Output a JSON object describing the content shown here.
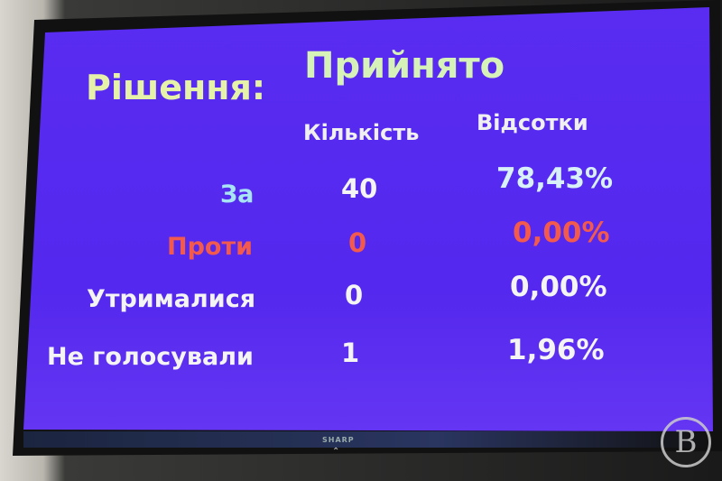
{
  "slide": {
    "decision_label": "Рішення:",
    "decision_value": "Прийнято",
    "columns": [
      "Кількість",
      "Відсотки"
    ],
    "rows": [
      {
        "label": "За",
        "count": "40",
        "percent": "78,43%",
        "color": "#a8e4f4"
      },
      {
        "label": "Проти",
        "count": "0",
        "percent": "0,00%",
        "color": "#f25a4e"
      },
      {
        "label": "Утрималися",
        "count": "0",
        "percent": "0,00%",
        "color": "#f4f4f4"
      },
      {
        "label": "Не голосували",
        "count": "1",
        "percent": "1,96%",
        "color": "#f4f4f4"
      }
    ]
  },
  "tv": {
    "brand": "SHARP"
  },
  "watermark": {
    "text": "В"
  },
  "colors": {
    "screen": "#5a2cf2",
    "title": "#e6f2a8",
    "header": "#f0f0f0"
  }
}
